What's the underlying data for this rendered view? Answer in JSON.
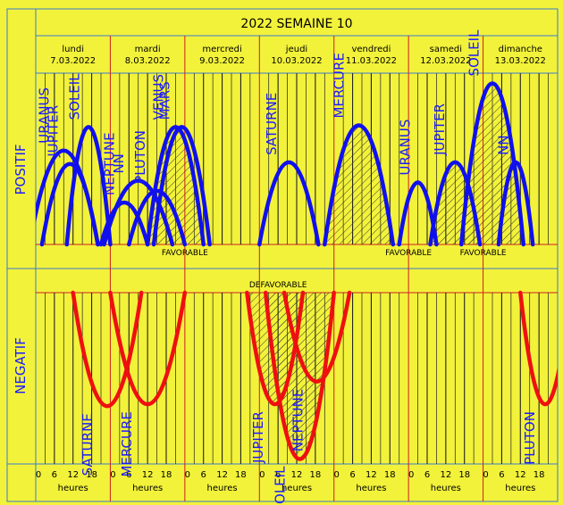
{
  "chart_data": {
    "type": "line",
    "title": "2022 SEMAINE 10",
    "days": [
      {
        "name": "lundi",
        "date": "7.03.2022"
      },
      {
        "name": "mardi",
        "date": "8.03.2022"
      },
      {
        "name": "mercredi",
        "date": "9.03.2022"
      },
      {
        "name": "jeudi",
        "date": "10.03.2022"
      },
      {
        "name": "vendredi",
        "date": "11.03.2022"
      },
      {
        "name": "samedi",
        "date": "12.03.2022"
      },
      {
        "name": "dimanche",
        "date": "13.03.2022"
      }
    ],
    "hour_ticks": [
      0,
      6,
      12,
      18
    ],
    "hours_label": "heures",
    "x_unit": "hours since Monday 00:00",
    "x_range": [
      0,
      168
    ],
    "positive_section_label": "POSITIF",
    "negative_section_label": "NEGATIF",
    "favorable_labels": [
      {
        "text": "FAVORABLE",
        "x": 48
      },
      {
        "text": "FAVORABLE",
        "x": 120
      },
      {
        "text": "FAVORABLE",
        "x": 144
      }
    ],
    "defavorable_label": {
      "text": "DEFAVORABLE",
      "x": 78
    },
    "positive_series": [
      {
        "name": "URANUS",
        "start": -2,
        "end": 20,
        "peak": 0.56,
        "hatched": false
      },
      {
        "name": "JUPITER",
        "start": 2,
        "end": 20,
        "peak": 0.48,
        "hatched": false
      },
      {
        "name": "SOLEIL",
        "start": 10,
        "end": 24,
        "peak": 0.7,
        "hatched": false
      },
      {
        "name": "NEPTUNE",
        "start": 21,
        "end": 36,
        "peak": 0.25,
        "hatched": false
      },
      {
        "name": "NN",
        "start": 22,
        "end": 44,
        "peak": 0.38,
        "hatched": false
      },
      {
        "name": "PLUTON",
        "start": 30,
        "end": 48,
        "peak": 0.32,
        "hatched": false
      },
      {
        "name": "VENUS",
        "start": 36,
        "end": 54,
        "peak": 0.7,
        "hatched": true
      },
      {
        "name": "MARS",
        "start": 38,
        "end": 56,
        "peak": 0.7,
        "hatched": false
      },
      {
        "name": "SATURNE",
        "start": 72,
        "end": 91,
        "peak": 0.49,
        "hatched": false
      },
      {
        "name": "MERCURE",
        "start": 93,
        "end": 115,
        "peak": 0.71,
        "hatched": true
      },
      {
        "name": "URANUS",
        "start": 117,
        "end": 129,
        "peak": 0.37,
        "hatched": false
      },
      {
        "name": "JUPITER",
        "start": 127,
        "end": 143,
        "peak": 0.49,
        "hatched": true
      },
      {
        "name": "SOLEIL",
        "start": 137,
        "end": 157,
        "peak": 0.96,
        "hatched": true
      },
      {
        "name": "NN",
        "start": 149,
        "end": 160,
        "peak": 0.49,
        "hatched": false
      }
    ],
    "negative_series": [
      {
        "name": "SATURNE",
        "start": 12,
        "end": 34,
        "peak": 0.6,
        "hatched": false
      },
      {
        "name": "MERCURE",
        "start": 24,
        "end": 48,
        "peak": 0.59,
        "hatched": false
      },
      {
        "name": "JUPITER",
        "start": 68,
        "end": 86,
        "peak": 0.59,
        "hatched": true
      },
      {
        "name": "SOLEIL",
        "start": 74,
        "end": 96,
        "peak": 0.88,
        "hatched": true
      },
      {
        "name": "NEPTUNE",
        "start": 80,
        "end": 101,
        "peak": 0.47,
        "hatched": false
      },
      {
        "name": "PLUTON",
        "start": 156,
        "end": 172,
        "peak": 0.59,
        "hatched": false
      }
    ],
    "colors": {
      "background": "#f2f23a",
      "positive": "#1010ee",
      "negative": "#ee1010",
      "text": "#1a1aff"
    }
  }
}
